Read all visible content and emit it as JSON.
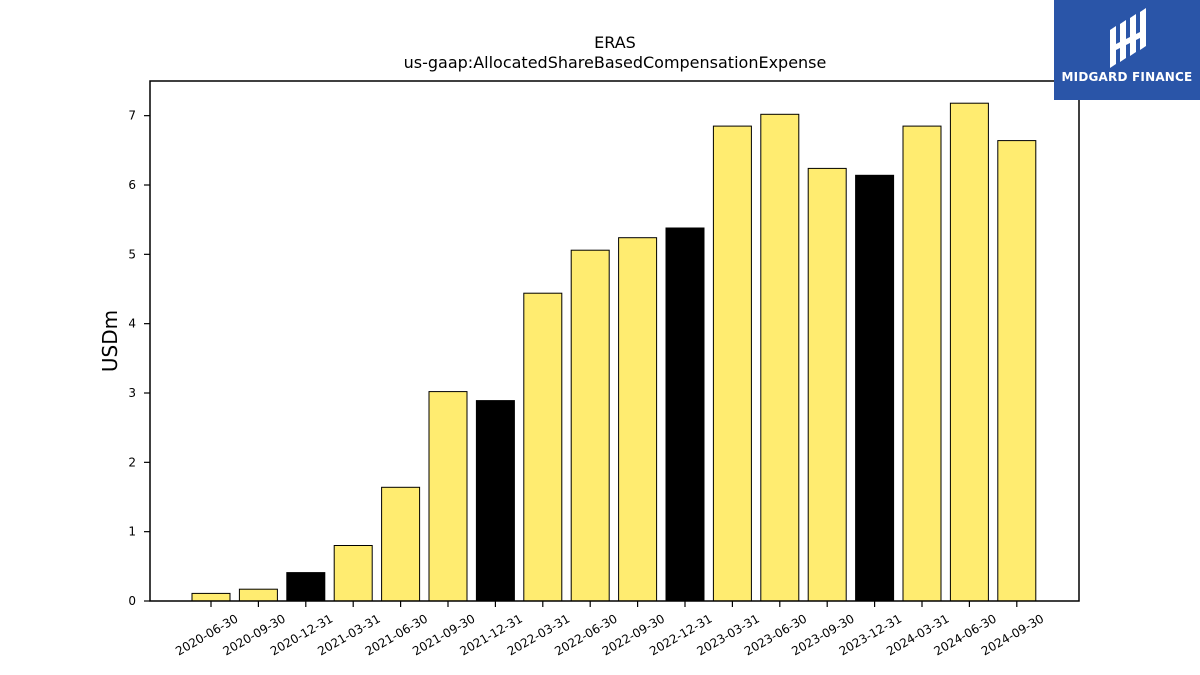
{
  "chart_data": {
    "type": "bar",
    "title": "ERAS",
    "subtitle": "us-gaap:AllocatedShareBasedCompensationExpense",
    "xlabel": "",
    "ylabel": "USDm",
    "ylim": [
      0,
      7.5
    ],
    "yticks": [
      0,
      1,
      2,
      3,
      4,
      5,
      6,
      7
    ],
    "grid": false,
    "categories": [
      "2020-06-30",
      "2020-09-30",
      "2020-12-31",
      "2021-03-31",
      "2021-06-30",
      "2021-09-30",
      "2021-12-31",
      "2022-03-31",
      "2022-06-30",
      "2022-09-30",
      "2022-12-31",
      "2023-03-31",
      "2023-06-30",
      "2023-09-30",
      "2023-12-31",
      "2024-03-31",
      "2024-06-30",
      "2024-09-30"
    ],
    "values": [
      0.11,
      0.17,
      0.41,
      0.8,
      1.64,
      3.02,
      2.89,
      4.44,
      5.06,
      5.24,
      5.38,
      6.85,
      7.02,
      6.24,
      6.14,
      6.85,
      7.18,
      6.64
    ],
    "bar_colors": [
      "#ffec70",
      "#ffec70",
      "#000000",
      "#ffec70",
      "#ffec70",
      "#ffec70",
      "#000000",
      "#ffec70",
      "#ffec70",
      "#ffec70",
      "#000000",
      "#ffec70",
      "#ffec70",
      "#ffec70",
      "#000000",
      "#ffec70",
      "#ffec70",
      "#ffec70"
    ]
  },
  "logo": {
    "text": "MIDGARD FINANCE",
    "background": "#2a55a8"
  }
}
